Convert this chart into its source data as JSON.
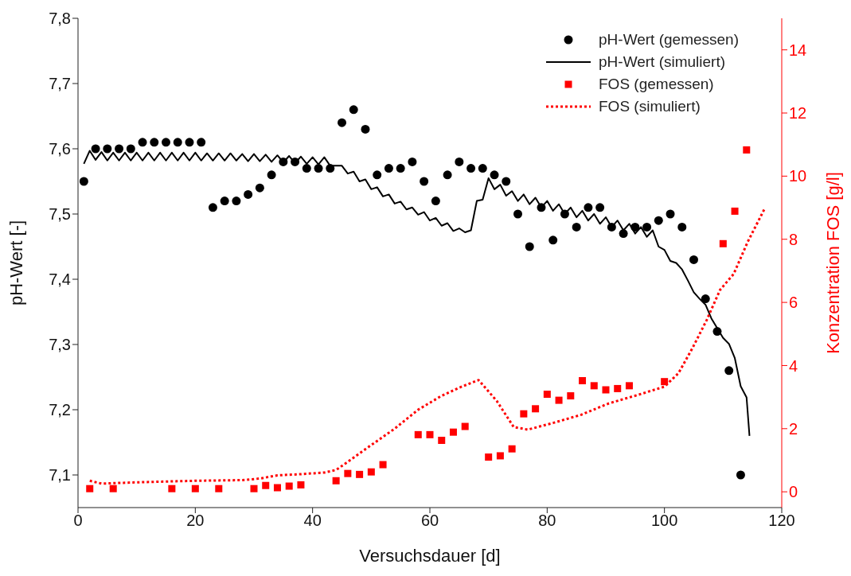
{
  "chart_data": {
    "type": "line",
    "xlabel": "Versuchsdauer [d]",
    "ylabel": "pH-Wert [-]",
    "y2label": "Konzentration FOS [g/l]",
    "xlim": [
      0,
      120
    ],
    "xticks": [
      0,
      20,
      40,
      60,
      80,
      100,
      120
    ],
    "ylim": [
      7.05,
      7.8
    ],
    "yticks": [
      {
        "value": 7.1,
        "label": "7,1"
      },
      {
        "value": 7.2,
        "label": "7,2"
      },
      {
        "value": 7.3,
        "label": "7,3"
      },
      {
        "value": 7.4,
        "label": "7,4"
      },
      {
        "value": 7.5,
        "label": "7,5"
      },
      {
        "value": 7.6,
        "label": "7,6"
      },
      {
        "value": 7.7,
        "label": "7,7"
      },
      {
        "value": 7.8,
        "label": "7,8"
      }
    ],
    "y2lim": [
      -0.5,
      15
    ],
    "y2ticks": [
      0,
      2,
      4,
      6,
      8,
      10,
      12,
      14
    ],
    "legend": "top right",
    "series": [
      {
        "name": "pH-Wert (gemessen)",
        "type": "scatter",
        "marker": "circle",
        "color": "#000000",
        "x": [
          1,
          3,
          5,
          7,
          9,
          11,
          13,
          15,
          17,
          19,
          21,
          23,
          25,
          27,
          29,
          31,
          33,
          35,
          37,
          39,
          41,
          43,
          45,
          47,
          49,
          51,
          53,
          55,
          57,
          59,
          61,
          63,
          65,
          67,
          69,
          71,
          73,
          75,
          77,
          79,
          81,
          83,
          85,
          87,
          89,
          91,
          93,
          95,
          97,
          99,
          101,
          103,
          105,
          107,
          109,
          111,
          113
        ],
        "values": [
          7.55,
          7.6,
          7.6,
          7.6,
          7.6,
          7.61,
          7.61,
          7.61,
          7.61,
          7.61,
          7.61,
          7.51,
          7.52,
          7.52,
          7.53,
          7.54,
          7.56,
          7.58,
          7.58,
          7.57,
          7.57,
          7.57,
          7.64,
          7.66,
          7.63,
          7.56,
          7.57,
          7.57,
          7.58,
          7.55,
          7.52,
          7.56,
          7.58,
          7.57,
          7.57,
          7.56,
          7.55,
          7.5,
          7.45,
          7.51,
          7.46,
          7.5,
          7.48,
          7.51,
          7.51,
          7.48,
          7.47,
          7.48,
          7.48,
          7.49,
          7.5,
          7.48,
          7.43,
          7.37,
          7.32,
          7.26,
          7.1
        ]
      },
      {
        "name": "pH-Wert (simuliert)",
        "marker": "none",
        "line_style": "solid",
        "color": "#000000",
        "x": [
          1,
          2,
          3,
          4,
          5,
          6,
          7,
          8,
          9,
          10,
          11,
          12,
          13,
          14,
          15,
          16,
          17,
          18,
          19,
          20,
          21,
          22,
          23,
          24,
          25,
          26,
          27,
          28,
          29,
          30,
          31,
          32,
          33,
          34,
          35,
          36,
          37,
          38,
          39,
          40,
          41,
          42,
          43,
          44,
          45,
          46,
          47,
          48,
          49,
          50,
          51,
          52,
          53,
          54,
          55,
          56,
          57,
          58,
          59,
          60,
          61,
          62,
          63,
          64,
          65,
          66,
          67,
          68,
          69,
          70,
          71,
          72,
          73,
          74,
          75,
          76,
          77,
          78,
          79,
          80,
          81,
          82,
          83,
          84,
          85,
          86,
          87,
          88,
          89,
          90,
          91,
          92,
          93,
          94,
          95,
          96,
          97,
          98,
          99,
          100,
          101,
          102,
          103,
          104,
          105,
          106,
          107,
          108,
          109,
          110,
          111,
          112,
          113,
          114,
          114.5
        ],
        "values": [
          7.577,
          7.597,
          7.583,
          7.595,
          7.582,
          7.594,
          7.582,
          7.594,
          7.582,
          7.594,
          7.582,
          7.594,
          7.582,
          7.594,
          7.582,
          7.594,
          7.582,
          7.594,
          7.582,
          7.594,
          7.582,
          7.593,
          7.582,
          7.593,
          7.582,
          7.593,
          7.582,
          7.592,
          7.581,
          7.592,
          7.581,
          7.591,
          7.58,
          7.59,
          7.579,
          7.589,
          7.578,
          7.588,
          7.577,
          7.587,
          7.576,
          7.587,
          7.574,
          7.574,
          7.574,
          7.562,
          7.565,
          7.55,
          7.553,
          7.538,
          7.541,
          7.527,
          7.53,
          7.516,
          7.519,
          7.507,
          7.51,
          7.499,
          7.503,
          7.49,
          7.494,
          7.482,
          7.486,
          7.474,
          7.478,
          7.472,
          7.475,
          7.52,
          7.522,
          7.555,
          7.538,
          7.545,
          7.528,
          7.535,
          7.52,
          7.53,
          7.515,
          7.525,
          7.51,
          7.52,
          7.505,
          7.515,
          7.5,
          7.51,
          7.495,
          7.505,
          7.49,
          7.5,
          7.485,
          7.495,
          7.48,
          7.49,
          7.475,
          7.485,
          7.47,
          7.48,
          7.465,
          7.475,
          7.45,
          7.445,
          7.428,
          7.425,
          7.415,
          7.398,
          7.38,
          7.37,
          7.361,
          7.34,
          7.325,
          7.31,
          7.301,
          7.279,
          7.236,
          7.219,
          7.16
        ]
      },
      {
        "name": "FOS (gemessen)",
        "type": "scatter",
        "marker": "square",
        "axis": "y2",
        "color": "#ff0000",
        "x": [
          2,
          6,
          16,
          20,
          24,
          30,
          32,
          34,
          36,
          38,
          44,
          46,
          48,
          50,
          52,
          58,
          60,
          62,
          64,
          66,
          70,
          72,
          74,
          76,
          78,
          80,
          82,
          84,
          86,
          88,
          90,
          92,
          94,
          100,
          110,
          112,
          114
        ],
        "values": [
          0.1,
          0.1,
          0.1,
          0.1,
          0.1,
          0.1,
          0.2,
          0.13,
          0.18,
          0.22,
          0.35,
          0.58,
          0.55,
          0.63,
          0.86,
          1.81,
          1.81,
          1.63,
          1.89,
          2.07,
          1.1,
          1.14,
          1.36,
          2.47,
          2.63,
          3.09,
          2.9,
          3.04,
          3.52,
          3.36,
          3.23,
          3.27,
          3.36,
          3.49,
          7.86,
          8.89,
          10.83
        ]
      },
      {
        "name": "FOS (simuliert)",
        "marker": "none",
        "line_style": "dotted",
        "axis": "y2",
        "color": "#ff0000",
        "x": [
          2,
          4,
          10,
          20,
          28,
          31,
          34,
          38,
          42,
          44,
          46,
          50,
          54,
          58,
          61.8,
          65,
          68.3,
          71.4,
          74.3,
          76.7,
          81,
          85.8,
          90.5,
          95.3,
          100,
          102.4,
          104.8,
          107.2,
          109.5,
          111.8,
          114.2,
          117
        ],
        "values": [
          0.35,
          0.26,
          0.3,
          0.35,
          0.37,
          0.42,
          0.52,
          0.56,
          0.61,
          0.69,
          0.95,
          1.48,
          2.0,
          2.6,
          3.02,
          3.3,
          3.54,
          2.88,
          2.05,
          1.97,
          2.18,
          2.44,
          2.8,
          3.06,
          3.33,
          3.76,
          4.56,
          5.44,
          6.4,
          6.9,
          7.92,
          8.94
        ]
      }
    ]
  }
}
